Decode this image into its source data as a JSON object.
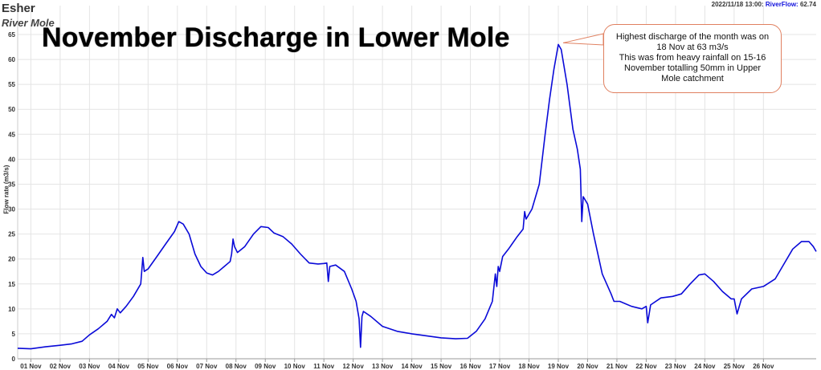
{
  "station": {
    "name": "Esher",
    "river": "River Mole"
  },
  "readout": {
    "datetime": "2022/11/18 13:00:",
    "series_label": "RiverFlow:",
    "value": "62.74"
  },
  "callout": {
    "text": "Highest discharge of the month was on 18 Nov at 63 m3/s\nThis was from heavy rainfall on 15-16 November totalling 50mm in Upper Mole catchment"
  },
  "colors": {
    "line": "#0a0ad8",
    "grid": "#e4e4e4",
    "callout_border": "#e08060"
  },
  "chart_data": {
    "type": "line",
    "title": "November Discharge in Lower Mole",
    "ylabel": "Flow rate (m3/s)",
    "xlabel": "",
    "ylim": [
      0,
      65
    ],
    "grid": true,
    "x_range": [
      0.55,
      27.8
    ],
    "y_ticks": [
      0,
      5,
      10,
      15,
      20,
      25,
      30,
      35,
      40,
      45,
      50,
      55,
      60,
      65
    ],
    "x_ticks": [
      {
        "label": "01 Nov",
        "x": 1
      },
      {
        "label": "02 Nov",
        "x": 2
      },
      {
        "label": "03 Nov",
        "x": 3
      },
      {
        "label": "04 Nov",
        "x": 4
      },
      {
        "label": "05 Nov",
        "x": 5
      },
      {
        "label": "06 Nov",
        "x": 6
      },
      {
        "label": "07 Nov",
        "x": 7
      },
      {
        "label": "08 Nov",
        "x": 8
      },
      {
        "label": "09 Nov",
        "x": 9
      },
      {
        "label": "10 Nov",
        "x": 10
      },
      {
        "label": "11 Nov",
        "x": 11
      },
      {
        "label": "12 Nov",
        "x": 12
      },
      {
        "label": "13 Nov",
        "x": 13
      },
      {
        "label": "14 Nov",
        "x": 14
      },
      {
        "label": "15 Nov",
        "x": 15
      },
      {
        "label": "16 Nov",
        "x": 16
      },
      {
        "label": "17 Nov",
        "x": 17
      },
      {
        "label": "18 Nov",
        "x": 18
      },
      {
        "label": "19 Nov",
        "x": 19
      },
      {
        "label": "20 Nov",
        "x": 20
      },
      {
        "label": "21 Nov",
        "x": 21
      },
      {
        "label": "22 Nov",
        "x": 22
      },
      {
        "label": "23 Nov",
        "x": 23
      },
      {
        "label": "24 Nov",
        "x": 24
      },
      {
        "label": "25 Nov",
        "x": 25
      },
      {
        "label": "26 Nov",
        "x": 26
      }
    ],
    "series": [
      {
        "name": "RiverFlow",
        "points": [
          [
            0.55,
            2.1
          ],
          [
            1.0,
            2.0
          ],
          [
            1.5,
            2.4
          ],
          [
            2.0,
            2.7
          ],
          [
            2.4,
            3.0
          ],
          [
            2.75,
            3.5
          ],
          [
            3.0,
            4.8
          ],
          [
            3.3,
            6.0
          ],
          [
            3.6,
            7.5
          ],
          [
            3.75,
            8.9
          ],
          [
            3.85,
            8.2
          ],
          [
            3.95,
            10.0
          ],
          [
            4.05,
            9.2
          ],
          [
            4.25,
            10.5
          ],
          [
            4.5,
            12.5
          ],
          [
            4.75,
            15.0
          ],
          [
            4.82,
            20.3
          ],
          [
            4.87,
            17.5
          ],
          [
            5.0,
            18.0
          ],
          [
            5.3,
            20.5
          ],
          [
            5.6,
            23.0
          ],
          [
            5.9,
            25.5
          ],
          [
            6.05,
            27.5
          ],
          [
            6.2,
            27.0
          ],
          [
            6.4,
            25.0
          ],
          [
            6.6,
            21.0
          ],
          [
            6.8,
            18.5
          ],
          [
            7.0,
            17.2
          ],
          [
            7.2,
            16.8
          ],
          [
            7.4,
            17.5
          ],
          [
            7.6,
            18.5
          ],
          [
            7.8,
            19.5
          ],
          [
            7.85,
            21.0
          ],
          [
            7.9,
            24.0
          ],
          [
            7.95,
            22.5
          ],
          [
            8.05,
            21.3
          ],
          [
            8.3,
            22.5
          ],
          [
            8.6,
            25.0
          ],
          [
            8.85,
            26.5
          ],
          [
            9.1,
            26.3
          ],
          [
            9.3,
            25.2
          ],
          [
            9.6,
            24.5
          ],
          [
            9.9,
            23.0
          ],
          [
            10.2,
            21.0
          ],
          [
            10.5,
            19.2
          ],
          [
            10.8,
            19.0
          ],
          [
            11.0,
            19.1
          ],
          [
            11.1,
            19.2
          ],
          [
            11.15,
            15.5
          ],
          [
            11.2,
            18.5
          ],
          [
            11.4,
            18.8
          ],
          [
            11.7,
            17.5
          ],
          [
            11.95,
            14.0
          ],
          [
            12.1,
            11.5
          ],
          [
            12.2,
            8.0
          ],
          [
            12.25,
            2.3
          ],
          [
            12.3,
            8.5
          ],
          [
            12.35,
            9.5
          ],
          [
            12.6,
            8.5
          ],
          [
            13.0,
            6.5
          ],
          [
            13.5,
            5.5
          ],
          [
            14.0,
            5.0
          ],
          [
            14.5,
            4.6
          ],
          [
            15.0,
            4.2
          ],
          [
            15.5,
            4.0
          ],
          [
            15.9,
            4.1
          ],
          [
            16.2,
            5.5
          ],
          [
            16.5,
            8.0
          ],
          [
            16.75,
            11.5
          ],
          [
            16.85,
            17.0
          ],
          [
            16.9,
            14.5
          ],
          [
            16.95,
            18.5
          ],
          [
            17.0,
            17.5
          ],
          [
            17.1,
            20.5
          ],
          [
            17.3,
            22.0
          ],
          [
            17.6,
            24.5
          ],
          [
            17.8,
            26.0
          ],
          [
            17.85,
            29.5
          ],
          [
            17.9,
            28.0
          ],
          [
            18.1,
            30.0
          ],
          [
            18.35,
            35.0
          ],
          [
            18.55,
            45.0
          ],
          [
            18.7,
            52.0
          ],
          [
            18.85,
            58.0
          ],
          [
            19.0,
            63.0
          ],
          [
            19.1,
            62.0
          ],
          [
            19.3,
            55.0
          ],
          [
            19.5,
            46.0
          ],
          [
            19.65,
            42.0
          ],
          [
            19.75,
            38.0
          ],
          [
            19.8,
            27.5
          ],
          [
            19.85,
            32.5
          ],
          [
            20.0,
            31.0
          ],
          [
            20.2,
            25.0
          ],
          [
            20.5,
            17.0
          ],
          [
            20.8,
            13.0
          ],
          [
            20.9,
            11.5
          ],
          [
            21.1,
            11.5
          ],
          [
            21.5,
            10.5
          ],
          [
            21.85,
            10.0
          ],
          [
            22.0,
            10.5
          ],
          [
            22.05,
            7.2
          ],
          [
            22.15,
            10.8
          ],
          [
            22.5,
            12.2
          ],
          [
            22.9,
            12.5
          ],
          [
            23.2,
            13.0
          ],
          [
            23.5,
            15.0
          ],
          [
            23.8,
            16.8
          ],
          [
            24.0,
            17.0
          ],
          [
            24.3,
            15.5
          ],
          [
            24.6,
            13.5
          ],
          [
            24.9,
            12.0
          ],
          [
            25.0,
            12.0
          ],
          [
            25.1,
            9.0
          ],
          [
            25.25,
            12.0
          ],
          [
            25.6,
            14.0
          ],
          [
            26.0,
            14.5
          ],
          [
            26.4,
            16.0
          ],
          [
            26.7,
            19.0
          ],
          [
            27.0,
            22.0
          ],
          [
            27.3,
            23.5
          ],
          [
            27.55,
            23.5
          ],
          [
            27.7,
            22.5
          ],
          [
            27.8,
            21.5
          ]
        ]
      }
    ]
  }
}
